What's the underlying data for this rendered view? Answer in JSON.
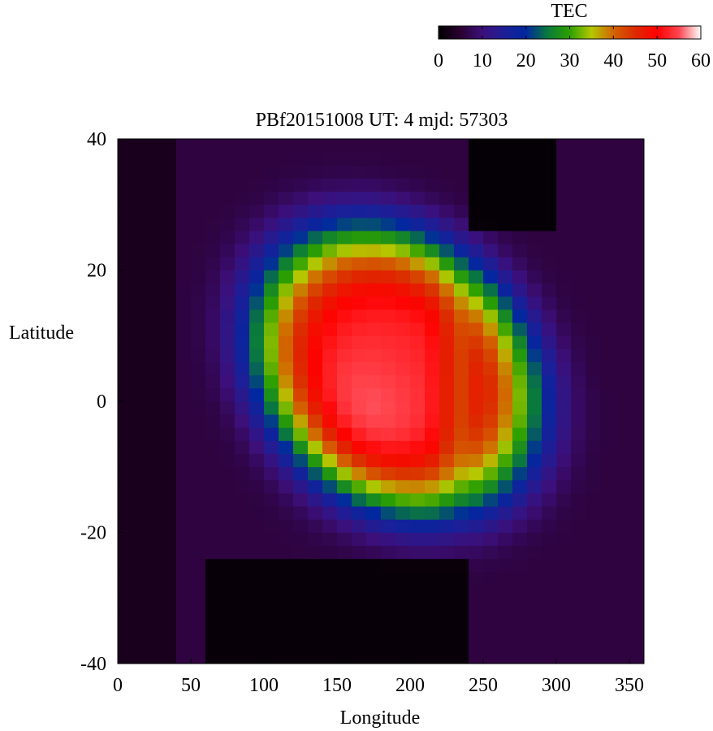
{
  "chart_data": {
    "type": "heatmap",
    "title": "PBf20151008  UT: 4  mjd: 57303",
    "xlabel": "Longitude",
    "ylabel": "Latitude",
    "xlim": [
      0,
      360
    ],
    "ylim": [
      -40,
      40
    ],
    "xticks": [
      "0",
      "50",
      "100",
      "150",
      "200",
      "250",
      "300",
      "350"
    ],
    "yticks": [
      "40",
      "20",
      "0",
      "-20",
      "-40"
    ],
    "colorbar": {
      "label": "TEC",
      "range": [
        0,
        60
      ],
      "ticks": [
        "0",
        "10",
        "20",
        "30",
        "40",
        "50",
        "60"
      ],
      "colormap": [
        [
          0,
          "#000000"
        ],
        [
          5,
          "#2a0030"
        ],
        [
          10,
          "#3c0f7a"
        ],
        [
          15,
          "#1e1e96"
        ],
        [
          20,
          "#0028a0"
        ],
        [
          25,
          "#0a7a3c"
        ],
        [
          30,
          "#2ca000"
        ],
        [
          35,
          "#b4c800"
        ],
        [
          40,
          "#d26400"
        ],
        [
          45,
          "#dc2a00"
        ],
        [
          50,
          "#ff0000"
        ],
        [
          55,
          "#ff4650"
        ],
        [
          60,
          "#ffffff"
        ]
      ]
    },
    "grid_resolution_deg": {
      "lon": 10,
      "lat": 2
    },
    "pattern": {
      "peak_tec": 52,
      "peak_lon": 165,
      "peak_lat": -4,
      "high_region_lon": [
        95,
        285
      ],
      "high_region_lat": [
        -26,
        24
      ],
      "background_tec": 6,
      "dark_north_region": "lon 240-300, lat 25-40",
      "dark_south_region": "lon 60-240, lat -40 to -24"
    }
  }
}
